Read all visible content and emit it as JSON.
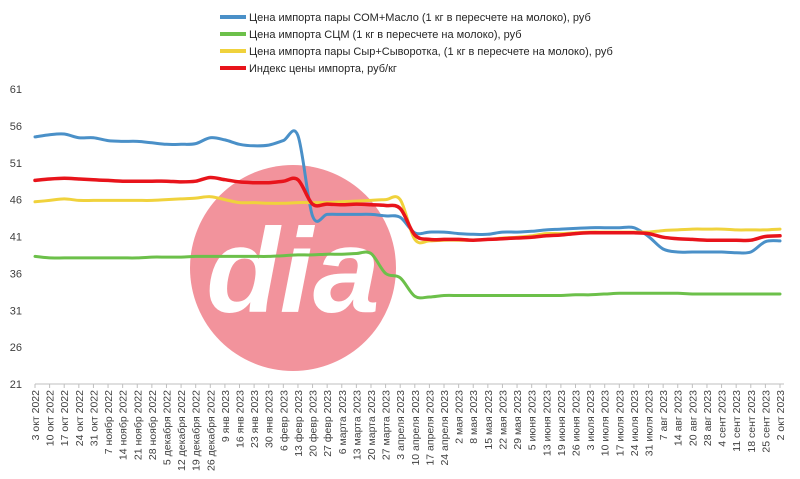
{
  "chart_data": {
    "type": "line",
    "title": "",
    "xlabel": "",
    "ylabel": "",
    "ylim": [
      21,
      61
    ],
    "yticks": [
      21,
      26,
      31,
      36,
      41,
      46,
      51,
      56,
      61
    ],
    "grid": false,
    "legend_position": "top-center",
    "watermark": "dia",
    "x": [
      "3 окт 2022",
      "10 окт 2022",
      "17 окт 2022",
      "24 окт 2022",
      "31 окт 2022",
      "7 ноябр 2022",
      "14 ноябр 2022",
      "21 ноябр 2022",
      "28 ноябр 2022",
      "5 декабря 2022",
      "12 декабря 2022",
      "19 декабря 2022",
      "26 декабря 2022",
      "9 янв 2023",
      "16 янв 2023",
      "23 янв 2023",
      "30 янв 2023",
      "6 февр 2023",
      "13 февр 2023",
      "20 февр 2023",
      "27 февр 2023",
      "6 марта 2023",
      "13 марта 2023",
      "20 марта 2023",
      "27 марта 2023",
      "3 апреля 2023",
      "10 апреля 2023",
      "17 апреля 2023",
      "24 апреля 2023",
      "2 мая 2023",
      "8 мая 2023",
      "15 мая 2023",
      "22 мая 2023",
      "29 мая 2023",
      "5 июня 2023",
      "13 июня 2023",
      "19 июня 2023",
      "26 июня 2023",
      "3 июля 2023",
      "10 июля 2023",
      "17 июля 2023",
      "24 июля 2023",
      "31 июля 2023",
      "7 авг 2023",
      "14 авг 2023",
      "20 авг 2023",
      "28 авг 2023",
      "4 сент 2023",
      "11 сент 2023",
      "18 сент 2023",
      "25 сент 2023",
      "2 окт 2023"
    ],
    "series": [
      {
        "name": "Цена импорта пары СОМ+Масло  (1 кг в пересчете на молоко), руб",
        "color": "#4a90c8",
        "values": [
          54.5,
          54.8,
          54.9,
          54.4,
          54.4,
          54.0,
          53.9,
          53.9,
          53.7,
          53.5,
          53.5,
          53.6,
          54.4,
          54.1,
          53.5,
          53.3,
          53.4,
          54.0,
          54.7,
          43.8,
          44.0,
          44.0,
          44.0,
          44.0,
          43.8,
          43.6,
          41.5,
          41.6,
          41.6,
          41.4,
          41.3,
          41.3,
          41.6,
          41.6,
          41.7,
          41.9,
          42.0,
          42.1,
          42.2,
          42.2,
          42.2,
          42.2,
          41.0,
          39.3,
          38.9,
          38.9,
          38.9,
          38.9,
          38.8,
          38.9,
          40.3,
          40.4
        ]
      },
      {
        "name": "Цена импорта СЦМ (1 кг в пересчете на молоко), руб",
        "color": "#6cc04a",
        "values": [
          38.3,
          38.1,
          38.1,
          38.1,
          38.1,
          38.1,
          38.1,
          38.1,
          38.2,
          38.2,
          38.2,
          38.3,
          38.3,
          38.3,
          38.3,
          38.3,
          38.3,
          38.4,
          38.5,
          38.5,
          38.6,
          38.6,
          38.7,
          38.7,
          36.0,
          35.4,
          32.9,
          32.8,
          33.0,
          33.0,
          33.0,
          33.0,
          33.0,
          33.0,
          33.0,
          33.0,
          33.0,
          33.1,
          33.1,
          33.2,
          33.3,
          33.3,
          33.3,
          33.3,
          33.3,
          33.2,
          33.2,
          33.2,
          33.2,
          33.2,
          33.2,
          33.2
        ]
      },
      {
        "name": "Цена импорта пары Сыр+Сыворотка, (1 кг в пересчете на молоко), руб",
        "color": "#f0d23c",
        "values": [
          45.7,
          45.9,
          46.1,
          45.9,
          45.9,
          45.9,
          45.9,
          45.9,
          45.9,
          46.0,
          46.1,
          46.2,
          46.4,
          46.0,
          45.6,
          45.6,
          45.5,
          45.5,
          45.6,
          45.6,
          45.6,
          45.7,
          45.8,
          45.9,
          46.0,
          46.0,
          40.6,
          40.4,
          40.5,
          40.5,
          40.5,
          40.6,
          40.8,
          40.9,
          41.1,
          41.4,
          41.4,
          41.5,
          41.6,
          41.6,
          41.6,
          41.6,
          41.6,
          41.8,
          41.9,
          42.0,
          42.0,
          42.0,
          41.9,
          41.9,
          41.9,
          42.0
        ]
      },
      {
        "name": "Индекс цены импорта, руб/кг",
        "color": "#e8141b",
        "values": [
          48.6,
          48.8,
          48.9,
          48.8,
          48.7,
          48.6,
          48.5,
          48.5,
          48.5,
          48.5,
          48.4,
          48.5,
          49.0,
          48.7,
          48.4,
          48.3,
          48.3,
          48.5,
          48.7,
          45.4,
          45.4,
          45.3,
          45.4,
          45.3,
          45.2,
          44.8,
          41.2,
          40.6,
          40.6,
          40.6,
          40.5,
          40.6,
          40.7,
          40.8,
          40.9,
          41.1,
          41.2,
          41.4,
          41.5,
          41.5,
          41.5,
          41.5,
          41.4,
          40.9,
          40.7,
          40.6,
          40.5,
          40.5,
          40.5,
          40.5,
          41.0,
          41.1
        ]
      }
    ]
  }
}
